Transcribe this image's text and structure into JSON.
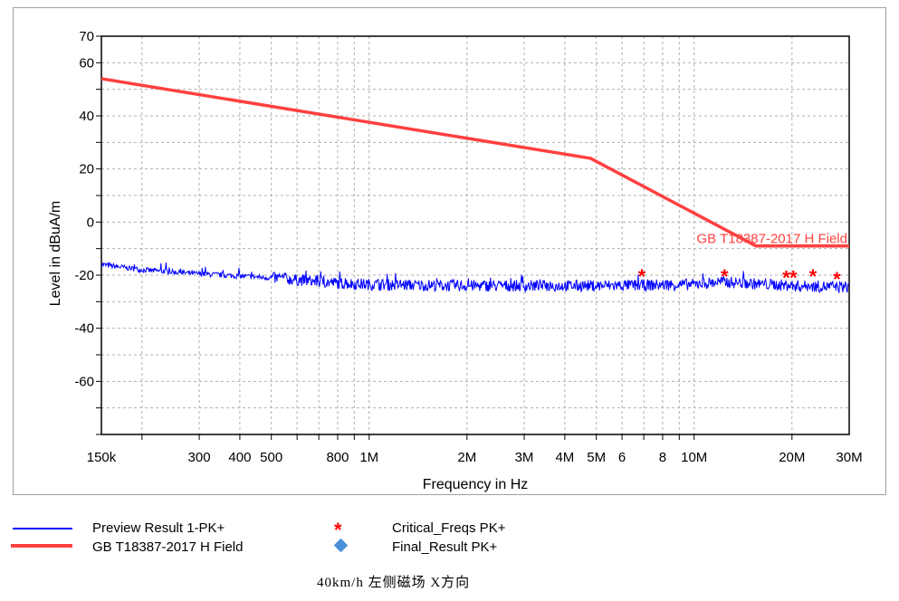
{
  "chart_data": {
    "type": "line",
    "xlabel": "Frequency in Hz",
    "ylabel": "Level in dBuA/m",
    "xscale": "log",
    "xlim": [
      150000,
      30000000
    ],
    "ylim": [
      -80,
      70
    ],
    "grid": true,
    "xticks": [
      {
        "v": 150000,
        "l": "150k"
      },
      {
        "v": 300000,
        "l": "300"
      },
      {
        "v": 400000,
        "l": "400"
      },
      {
        "v": 500000,
        "l": "500"
      },
      {
        "v": 800000,
        "l": "800"
      },
      {
        "v": 1000000,
        "l": "1M"
      },
      {
        "v": 2000000,
        "l": "2M"
      },
      {
        "v": 3000000,
        "l": "3M"
      },
      {
        "v": 4000000,
        "l": "4M"
      },
      {
        "v": 5000000,
        "l": "5M"
      },
      {
        "v": 6000000,
        "l": "6"
      },
      {
        "v": 8000000,
        "l": "8"
      },
      {
        "v": 10000000,
        "l": "10M"
      },
      {
        "v": 20000000,
        "l": "20M"
      },
      {
        "v": 30000000,
        "l": "30M"
      }
    ],
    "yticks": [
      70,
      60,
      40,
      20,
      0,
      -20,
      -40,
      -60
    ],
    "series": [
      {
        "name": "Preview Result 1-PK+",
        "color": "#0000ff",
        "x": [
          150000,
          200000,
          300000,
          500000,
          800000,
          1000000,
          2000000,
          5000000,
          10000000,
          12000000,
          20000000,
          30000000
        ],
        "y": [
          -16,
          -18,
          -19.5,
          -21,
          -23,
          -23.5,
          -24,
          -24,
          -23.5,
          -22.5,
          -24,
          -24.5
        ]
      },
      {
        "name": "GB T18387-2017 H Field",
        "color": "#ff4040",
        "x": [
          150000,
          4800000,
          15500000,
          30000000
        ],
        "y": [
          54,
          24,
          -9,
          -9
        ]
      },
      {
        "name": "Critical_Freqs PK+",
        "color": "#ff0000",
        "marker": "asterisk",
        "x": [
          6900000,
          12400000,
          19200000,
          20200000,
          23200000,
          27500000
        ],
        "y": [
          -20,
          -20,
          -20.5,
          -20.5,
          -20,
          -21
        ]
      },
      {
        "name": "Final_Result PK+",
        "color": "#4a90d9",
        "marker": "diamond",
        "x": [],
        "y": []
      }
    ],
    "annotation": "GB T18387-2017 H Field"
  },
  "caption": "40km/h 左侧磁场 X方向"
}
